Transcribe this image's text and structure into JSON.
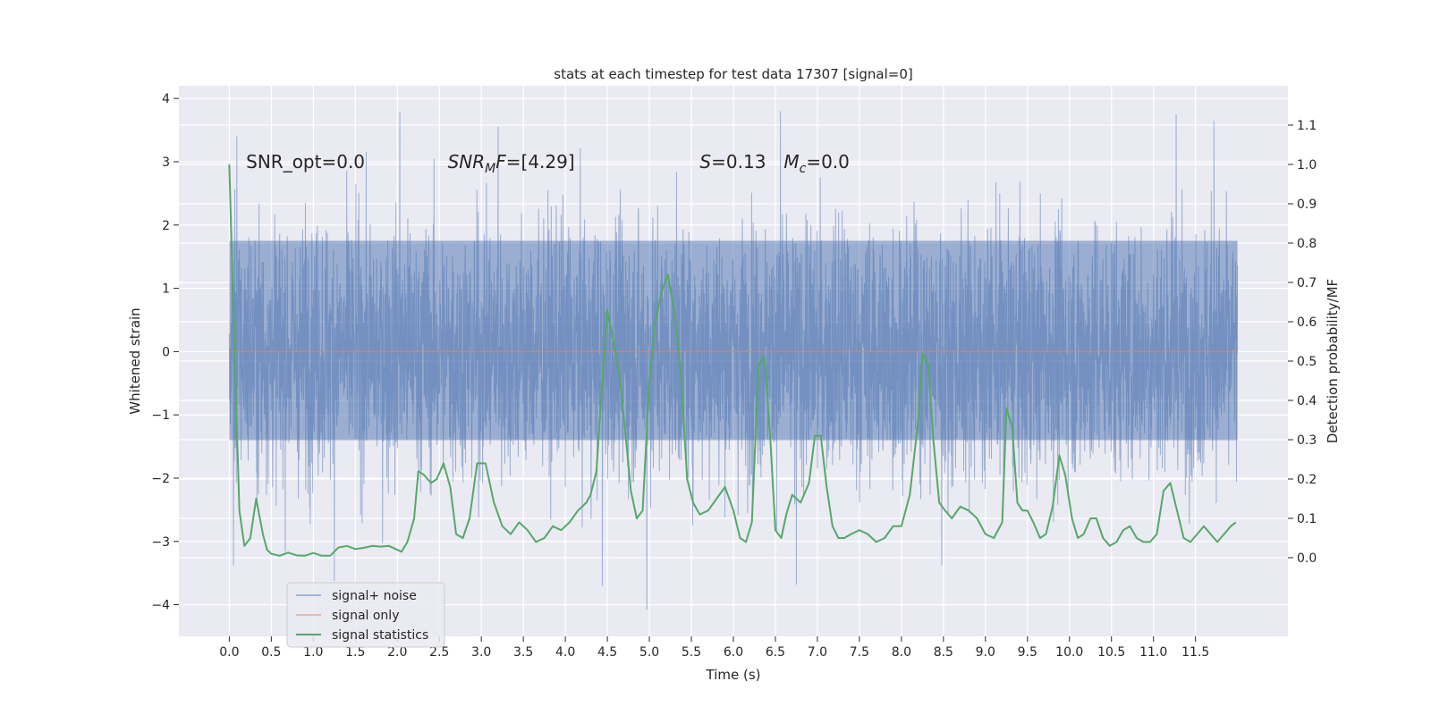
{
  "chart_data": {
    "type": "line",
    "title": "stats at each timestep for test data 17307 [signal=0]",
    "xlabel": "Time (s)",
    "ylabel": "Whitened strain",
    "y2label": "Detection probability/MF",
    "xlim": [
      -0.6,
      12.6
    ],
    "ylim": [
      -4.5,
      4.2
    ],
    "y2lim": [
      -0.2,
      1.2
    ],
    "x_ticks": [
      0.0,
      0.5,
      1.0,
      1.5,
      2.0,
      2.5,
      3.0,
      3.5,
      4.0,
      4.5,
      5.0,
      5.5,
      6.0,
      6.5,
      7.0,
      7.5,
      8.0,
      8.5,
      9.0,
      9.5,
      10.0,
      10.5,
      11.0,
      11.5
    ],
    "x_tick_labels": [
      "0.0",
      "0.5",
      "1.0",
      "1.5",
      "2.0",
      "2.5",
      "3.0",
      "3.5",
      "4.0",
      "4.5",
      "5.0",
      "5.5",
      "6.0",
      "6.5",
      "7.0",
      "7.5",
      "8.0",
      "8.5",
      "9.0",
      "9.5",
      "10.0",
      "10.5",
      "11.0",
      "11.5"
    ],
    "y_ticks": [
      -4,
      -3,
      -2,
      -1,
      0,
      1,
      2,
      3,
      4
    ],
    "y_tick_labels": [
      "−4",
      "−3",
      "−2",
      "−1",
      "0",
      "1",
      "2",
      "3",
      "4"
    ],
    "y2_ticks": [
      0.0,
      0.1,
      0.2,
      0.3,
      0.4,
      0.5,
      0.6,
      0.7,
      0.8,
      0.9,
      1.0,
      1.1
    ],
    "y2_tick_labels": [
      "0.0",
      "0.1",
      "0.2",
      "0.3",
      "0.4",
      "0.5",
      "0.6",
      "0.7",
      "0.8",
      "0.9",
      "1.0",
      "1.1"
    ],
    "grid": true,
    "legend_position": "lower-left",
    "annotations": [
      {
        "plain": "SNR_opt=0.0",
        "x": 0.2,
        "y": 3.0
      },
      {
        "base": "SNR",
        "sub": "M",
        "rest": "F=[4.29]",
        "x": 2.6,
        "y": 3.0
      },
      {
        "base": "S",
        "rest": "=0.13",
        "x": 5.6,
        "y": 3.0
      },
      {
        "base": "M",
        "sub": "c",
        "rest": "=0.0",
        "x": 6.6,
        "y": 3.0
      }
    ],
    "series": [
      {
        "name": "signal+ noise",
        "color": "#4c72b0",
        "axis": "left",
        "x_start": 0.0,
        "x_end": 12.0,
        "band_lower": -1.4,
        "band_upper": 1.75,
        "notable_values": [
          {
            "x": 0.05,
            "y": -3.38
          },
          {
            "x": 0.09,
            "y": 3.4
          },
          {
            "x": 1.25,
            "y": -3.62
          },
          {
            "x": 2.03,
            "y": 3.78
          },
          {
            "x": 3.2,
            "y": 3.55
          },
          {
            "x": 4.44,
            "y": -3.7
          },
          {
            "x": 4.97,
            "y": -4.08
          },
          {
            "x": 6.56,
            "y": 3.8
          },
          {
            "x": 6.75,
            "y": -3.68
          },
          {
            "x": 8.48,
            "y": -3.38
          },
          {
            "x": 11.27,
            "y": 3.75
          },
          {
            "x": 11.72,
            "y": 3.65
          }
        ]
      },
      {
        "name": "signal only",
        "color": "#dd8452",
        "axis": "left",
        "x": [
          0.0,
          12.0
        ],
        "y": [
          0.0,
          0.0
        ]
      },
      {
        "name": "signal statistics",
        "color": "#55a868",
        "axis": "right",
        "x": [
          0.0,
          0.06,
          0.12,
          0.18,
          0.25,
          0.32,
          0.4,
          0.45,
          0.5,
          0.6,
          0.7,
          0.8,
          0.9,
          1.0,
          1.1,
          1.2,
          1.3,
          1.4,
          1.5,
          1.6,
          1.7,
          1.8,
          1.9,
          2.0,
          2.05,
          2.12,
          2.2,
          2.25,
          2.32,
          2.4,
          2.47,
          2.55,
          2.63,
          2.7,
          2.78,
          2.86,
          2.95,
          3.05,
          3.15,
          3.25,
          3.35,
          3.45,
          3.55,
          3.65,
          3.75,
          3.85,
          3.95,
          4.05,
          4.15,
          4.25,
          4.3,
          4.37,
          4.44,
          4.5,
          4.57,
          4.64,
          4.7,
          4.78,
          4.85,
          4.92,
          5.0,
          5.07,
          5.15,
          5.22,
          5.3,
          5.37,
          5.45,
          5.52,
          5.6,
          5.7,
          5.8,
          5.9,
          6.0,
          6.08,
          6.15,
          6.22,
          6.3,
          6.37,
          6.44,
          6.5,
          6.57,
          6.63,
          6.7,
          6.8,
          6.9,
          6.97,
          7.04,
          7.11,
          7.18,
          7.25,
          7.32,
          7.4,
          7.5,
          7.6,
          7.7,
          7.8,
          7.9,
          8.0,
          8.1,
          8.2,
          8.25,
          8.32,
          8.38,
          8.45,
          8.52,
          8.6,
          8.7,
          8.8,
          8.9,
          9.0,
          9.1,
          9.2,
          9.25,
          9.32,
          9.38,
          9.44,
          9.5,
          9.57,
          9.65,
          9.72,
          9.8,
          9.88,
          9.95,
          10.03,
          10.1,
          10.17,
          10.25,
          10.32,
          10.4,
          10.48,
          10.56,
          10.64,
          10.72,
          10.8,
          10.88,
          10.96,
          11.04,
          11.12,
          11.2,
          11.28,
          11.36,
          11.44,
          11.52,
          11.6,
          11.68,
          11.76,
          11.84,
          11.92,
          11.98
        ],
        "y": [
          1.0,
          0.55,
          0.12,
          0.03,
          0.05,
          0.15,
          0.06,
          0.02,
          0.01,
          0.005,
          0.013,
          0.006,
          0.005,
          0.012,
          0.005,
          0.005,
          0.026,
          0.03,
          0.022,
          0.025,
          0.03,
          0.028,
          0.03,
          0.02,
          0.015,
          0.04,
          0.1,
          0.22,
          0.21,
          0.19,
          0.2,
          0.24,
          0.18,
          0.06,
          0.05,
          0.1,
          0.24,
          0.24,
          0.14,
          0.08,
          0.06,
          0.09,
          0.07,
          0.04,
          0.05,
          0.08,
          0.07,
          0.09,
          0.12,
          0.14,
          0.16,
          0.22,
          0.45,
          0.63,
          0.55,
          0.47,
          0.35,
          0.17,
          0.1,
          0.12,
          0.45,
          0.6,
          0.68,
          0.72,
          0.62,
          0.48,
          0.2,
          0.14,
          0.11,
          0.12,
          0.15,
          0.18,
          0.12,
          0.05,
          0.04,
          0.09,
          0.49,
          0.51,
          0.3,
          0.07,
          0.05,
          0.11,
          0.16,
          0.14,
          0.19,
          0.31,
          0.31,
          0.18,
          0.08,
          0.05,
          0.05,
          0.06,
          0.07,
          0.06,
          0.04,
          0.05,
          0.08,
          0.08,
          0.16,
          0.35,
          0.52,
          0.49,
          0.3,
          0.14,
          0.12,
          0.1,
          0.13,
          0.12,
          0.1,
          0.06,
          0.05,
          0.09,
          0.38,
          0.33,
          0.14,
          0.12,
          0.12,
          0.09,
          0.05,
          0.06,
          0.13,
          0.26,
          0.21,
          0.1,
          0.05,
          0.06,
          0.1,
          0.1,
          0.05,
          0.03,
          0.04,
          0.07,
          0.08,
          0.05,
          0.04,
          0.04,
          0.06,
          0.17,
          0.19,
          0.12,
          0.05,
          0.04,
          0.06,
          0.08,
          0.06,
          0.04,
          0.06,
          0.08,
          0.09
        ]
      }
    ]
  }
}
